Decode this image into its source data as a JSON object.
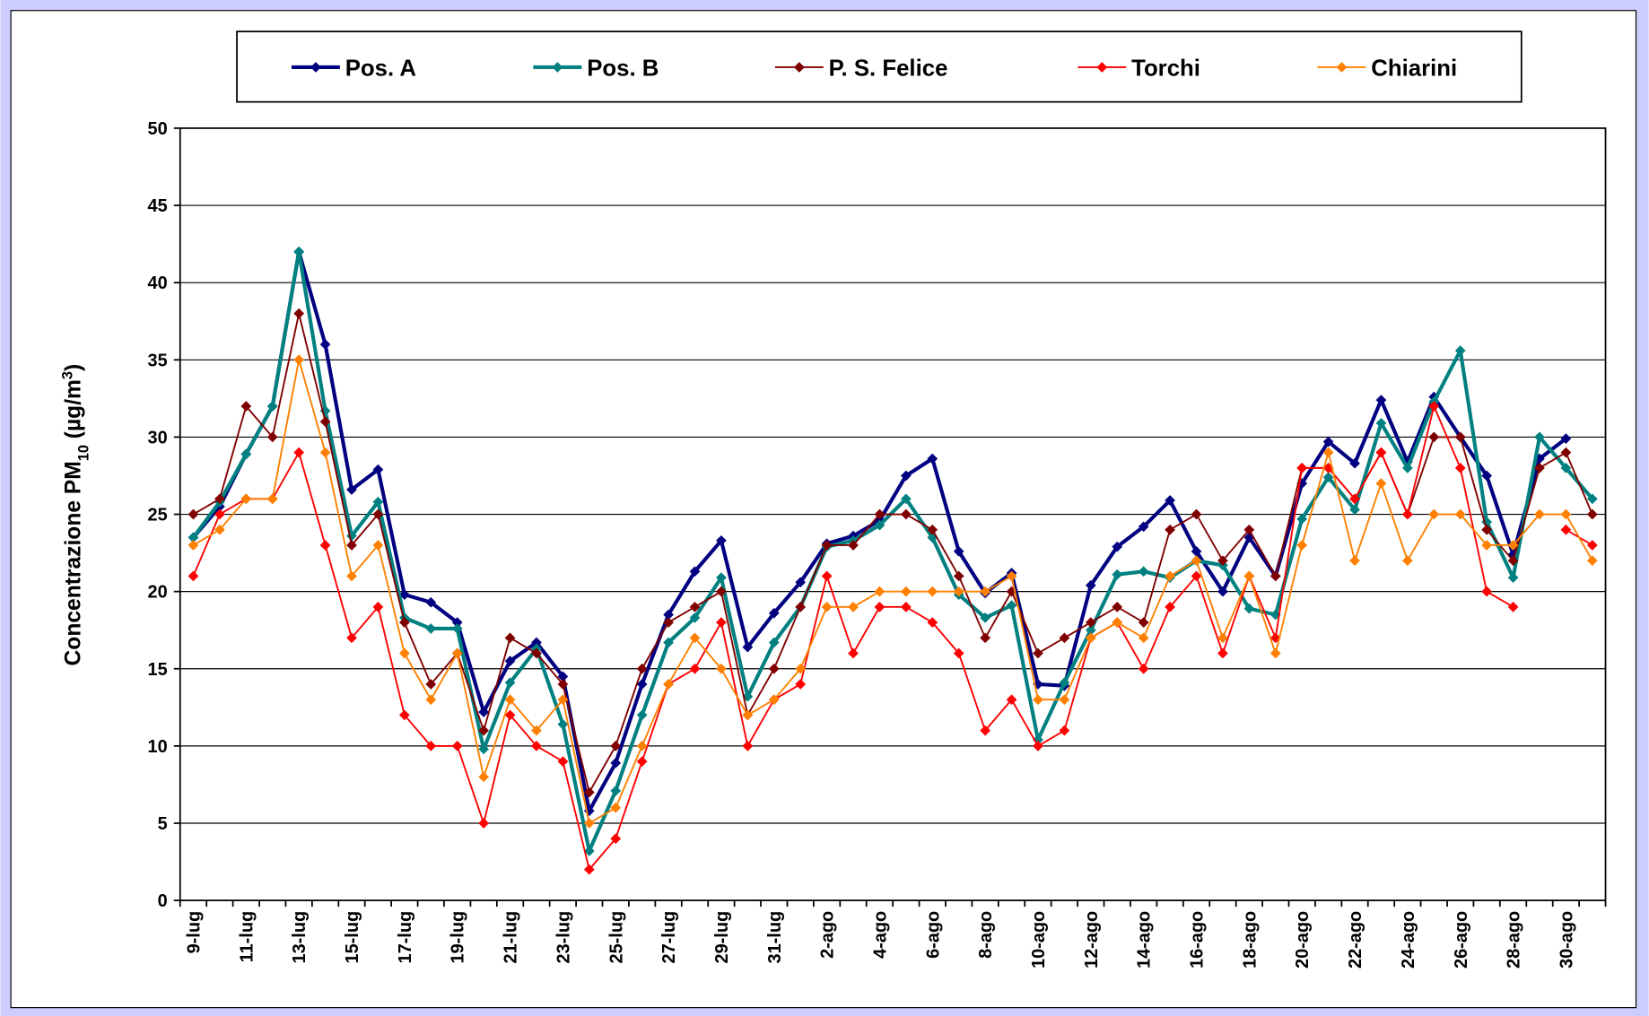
{
  "chart_data": {
    "type": "line",
    "y_label": [
      "Concentrazione PM",
      "10",
      " (µg/m",
      "3",
      ")"
    ],
    "categories": [
      "9-lug",
      null,
      "11-lug",
      null,
      "13-lug",
      null,
      "15-lug",
      null,
      "17-lug",
      null,
      "19-lug",
      null,
      "21-lug",
      null,
      "23-lug",
      null,
      "25-lug",
      null,
      "27-lug",
      null,
      "29-lug",
      null,
      "31-lug",
      null,
      "2-ago",
      null,
      "4-ago",
      null,
      "6-ago",
      null,
      "8-ago",
      null,
      "10-ago",
      null,
      "12-ago",
      null,
      "14-ago",
      null,
      "16-ago",
      null,
      "18-ago",
      null,
      "20-ago",
      null,
      "22-ago",
      null,
      "24-ago",
      null,
      "26-ago",
      null,
      "28-ago",
      null,
      "30-ago",
      null
    ],
    "ylim": [
      0,
      50
    ],
    "yticks": [
      0,
      5,
      10,
      15,
      20,
      25,
      30,
      35,
      40,
      45,
      50
    ],
    "grid": true,
    "series": [
      {
        "name": "Pos. A",
        "color": "#000080",
        "values": [
          23.5,
          25.5,
          28.9,
          32,
          42,
          36,
          26.6,
          27.9,
          19.8,
          19.3,
          18,
          12.2,
          15.5,
          16.7,
          14.5,
          5.8,
          8.9,
          14,
          18.5,
          21.3,
          23.3,
          16.4,
          18.6,
          20.6,
          23.1,
          23.6,
          24.6,
          27.5,
          28.6,
          22.6,
          19.9,
          21.2,
          14,
          13.9,
          20.4,
          22.9,
          24.2,
          25.9,
          22.6,
          20,
          23.5,
          21,
          27,
          29.7,
          28.3,
          32.4,
          28.4,
          32.6,
          30,
          27.5,
          22.4,
          28.6,
          29.9,
          null
        ]
      },
      {
        "name": "Pos. B",
        "color": "#008080",
        "values": [
          23.5,
          25.8,
          28.9,
          32,
          42,
          31.7,
          23.6,
          25.8,
          18.3,
          17.6,
          17.6,
          9.8,
          14.1,
          16.3,
          11.4,
          3.2,
          7.1,
          12,
          16.7,
          18.3,
          20.9,
          13.2,
          16.7,
          19,
          22.9,
          23.3,
          24.3,
          26,
          23.5,
          19.8,
          18.3,
          19.1,
          10.4,
          14.1,
          17.5,
          21.1,
          21.3,
          20.9,
          22,
          21.7,
          18.9,
          18.5,
          24.7,
          27.4,
          25.3,
          30.9,
          28,
          32.3,
          35.6,
          24.5,
          20.9,
          30,
          28,
          26
        ]
      },
      {
        "name": "P. S. Felice",
        "color": "#800000",
        "values": [
          25,
          26,
          32,
          30,
          38,
          31,
          23,
          25,
          18,
          14,
          16,
          11,
          17,
          16,
          14,
          7,
          10,
          15,
          18,
          19,
          20,
          12,
          15,
          19,
          23,
          23,
          25,
          25,
          24,
          21,
          17,
          20,
          16,
          17,
          18,
          19,
          18,
          24,
          25,
          22,
          24,
          21,
          28,
          28,
          26,
          29,
          25,
          30,
          30,
          24,
          22,
          28,
          29,
          25
        ]
      },
      {
        "name": "Torchi",
        "color": "#ff0000",
        "values": [
          21,
          25,
          26,
          26,
          29,
          23,
          17,
          19,
          12,
          10,
          10,
          5,
          12,
          10,
          9,
          2,
          4,
          9,
          14,
          15,
          18,
          10,
          13,
          14,
          21,
          16,
          19,
          19,
          18,
          16,
          11,
          13,
          10,
          11,
          17,
          18,
          15,
          19,
          21,
          16,
          21,
          17,
          28,
          28,
          26,
          29,
          25,
          32,
          28,
          20,
          19,
          null,
          24,
          23
        ]
      },
      {
        "name": "Chiarini",
        "color": "#ff8000",
        "values": [
          23,
          24,
          26,
          26,
          35,
          29,
          21,
          23,
          16,
          13,
          16,
          8,
          13,
          11,
          13,
          5,
          6,
          10,
          14,
          17,
          15,
          12,
          13,
          15,
          19,
          19,
          20,
          20,
          20,
          20,
          20,
          21,
          13,
          13,
          17,
          18,
          17,
          21,
          22,
          17,
          21,
          16,
          23,
          29,
          22,
          27,
          22,
          25,
          25,
          23,
          23,
          25,
          25,
          22
        ]
      }
    ]
  }
}
